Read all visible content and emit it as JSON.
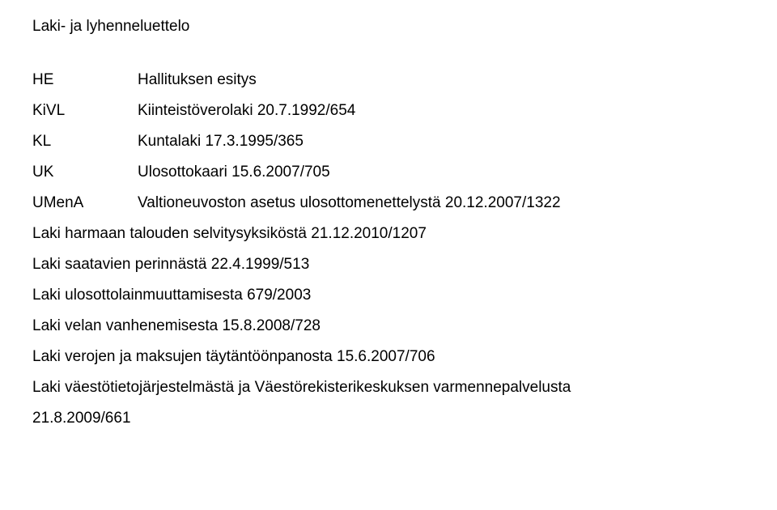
{
  "text_color": "#000000",
  "background_color": "#ffffff",
  "heading": "Laki- ja lyhenneluettelo",
  "definitions": [
    {
      "term": "HE",
      "desc": "Hallituksen esitys"
    },
    {
      "term": "KiVL",
      "desc": "Kiinteistöverolaki 20.7.1992/654"
    },
    {
      "term": "KL",
      "desc": "Kuntalaki 17.3.1995/365"
    },
    {
      "term": "UK",
      "desc": "Ulosottokaari 15.6.2007/705"
    },
    {
      "term": "UMenA",
      "desc": "Valtioneuvoston asetus ulosottomenettelystä 20.12.2007/1322"
    }
  ],
  "lines": [
    "Laki harmaan talouden selvitysyksiköstä 21.12.2010/1207",
    "Laki saatavien perinnästä 22.4.1999/513",
    "Laki ulosottolainmuuttamisesta 679/2003",
    "Laki velan vanhenemisesta 15.8.2008/728",
    "Laki verojen ja maksujen täytäntöönpanosta 15.6.2007/706",
    "Laki väestötietojärjestelmästä ja Väestörekisterikeskuksen varmennepalvelusta",
    "21.8.2009/661"
  ]
}
